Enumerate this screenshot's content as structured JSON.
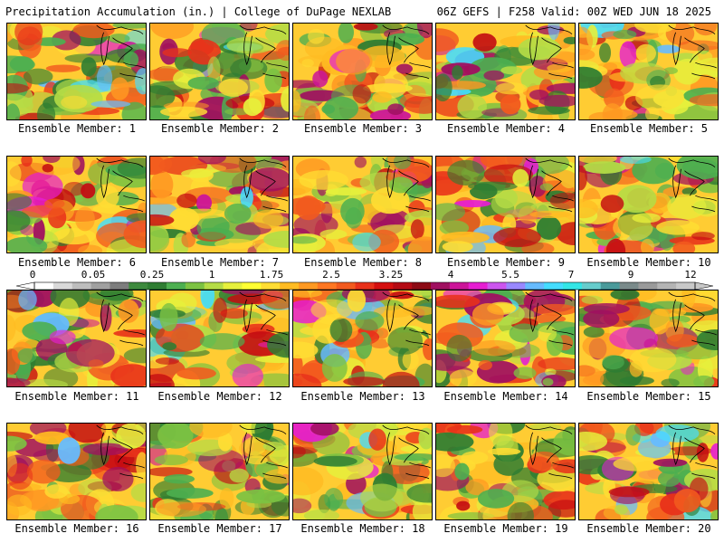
{
  "header": {
    "title_left": "Precipitation Accumulation (in.) | College of DuPage NEXLAB",
    "title_right": "06Z GEFS | F258 Valid: 00Z WED JUN 18 2025"
  },
  "colorbar": {
    "tick_labels": [
      "0",
      "0.05",
      "0.25",
      "1",
      "1.75",
      "2.5",
      "3.25",
      "4",
      "5.5",
      "7",
      "9",
      "12"
    ],
    "colors": [
      "#ffffff",
      "#d9d9d9",
      "#bdbdbd",
      "#a0a0a0",
      "#7d7d7d",
      "#3d8a3d",
      "#2e7d32",
      "#4caf50",
      "#7cc242",
      "#b5dc46",
      "#e6f03c",
      "#ffff33",
      "#ffdd33",
      "#ffbb22",
      "#ff9922",
      "#ff7722",
      "#f25a1e",
      "#e8311a",
      "#d40f0f",
      "#b40a14",
      "#8c0a14",
      "#a01060",
      "#cc1599",
      "#e61ed2",
      "#cc55ee",
      "#9988ff",
      "#66bbff",
      "#44ddff",
      "#33e6e6",
      "#66cccc",
      "#4a9a9a",
      "#7a8a8a",
      "#9a9a9a",
      "#b4b4b4",
      "#c8c8c8"
    ]
  },
  "members": [
    {
      "label": "Ensemble Member: 1"
    },
    {
      "label": "Ensemble Member: 2"
    },
    {
      "label": "Ensemble Member: 3"
    },
    {
      "label": "Ensemble Member: 4"
    },
    {
      "label": "Ensemble Member: 5"
    },
    {
      "label": "Ensemble Member: 6"
    },
    {
      "label": "Ensemble Member: 7"
    },
    {
      "label": "Ensemble Member: 8"
    },
    {
      "label": "Ensemble Member: 9"
    },
    {
      "label": "Ensemble Member: 10"
    },
    {
      "label": "Ensemble Member: 11"
    },
    {
      "label": "Ensemble Member: 12"
    },
    {
      "label": "Ensemble Member: 13"
    },
    {
      "label": "Ensemble Member: 14"
    },
    {
      "label": "Ensemble Member: 15"
    },
    {
      "label": "Ensemble Member: 16"
    },
    {
      "label": "Ensemble Member: 17"
    },
    {
      "label": "Ensemble Member: 18"
    },
    {
      "label": "Ensemble Member: 19"
    },
    {
      "label": "Ensemble Member: 20"
    }
  ]
}
